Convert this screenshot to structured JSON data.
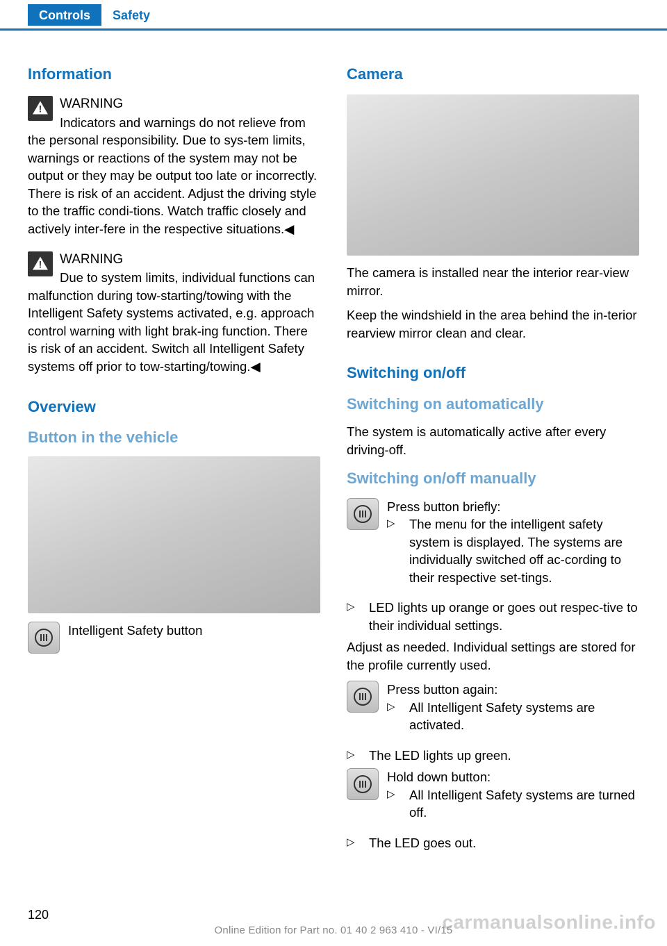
{
  "header": {
    "tab1": "Controls",
    "tab2": "Safety"
  },
  "left": {
    "h_information": "Information",
    "warning1": {
      "title": "WARNING",
      "body": "Indicators and warnings do not relieve from the personal responsibility. Due to sys‐tem limits, warnings or reactions of the system may not be output or they may be output too late or incorrectly. There is risk of an accident. Adjust the driving style to the traffic condi‐tions. Watch traffic closely and actively inter‐fere in the respective situations.◀"
    },
    "warning2": {
      "title": "WARNING",
      "body": "Due to system limits, individual functions can malfunction during tow-starting/towing with the Intelligent Safety systems activated, e.g. approach control warning with light brak‐ing function. There is risk of an accident. Switch all Intelligent Safety systems off prior to tow-starting/towing.◀"
    },
    "h_overview": "Overview",
    "h_button": "Button in the vehicle",
    "button_caption": "Intelligent Safety button"
  },
  "right": {
    "h_camera": "Camera",
    "camera_p1": "The camera is installed near the interior rear‐view mirror.",
    "camera_p2": "Keep the windshield in the area behind the in‐terior rearview mirror clean and clear.",
    "h_switch": "Switching on/off",
    "h_auto": "Switching on automatically",
    "auto_body": "The system is automatically active after every driving-off.",
    "h_manual": "Switching on/off manually",
    "press1_intro": "Press button briefly:",
    "press1_b1": "The menu for the intelligent safety system is displayed. The systems are individually switched off ac‐cording to their respective set‐tings.",
    "press1_b2": "LED lights up orange or goes out respec‐tive to their individual settings.",
    "adjust": "Adjust as needed. Individual settings are stored for the profile currently used.",
    "press2_intro": "Press button again:",
    "press2_b1": "All Intelligent Safety systems are activated.",
    "press2_b2": "The LED lights up green.",
    "hold_intro": "Hold down button:",
    "hold_b1": "All Intelligent Safety systems are turned off.",
    "hold_b2": "The LED goes out."
  },
  "footer": {
    "page": "120",
    "line": "Online Edition for Part no. 01 40 2 963 410 - VI/15",
    "watermark": "carmanualsonline.info"
  },
  "colors": {
    "accent": "#1072ba",
    "subhead": "#6ea6d2",
    "text": "#000000",
    "bg": "#ffffff"
  }
}
